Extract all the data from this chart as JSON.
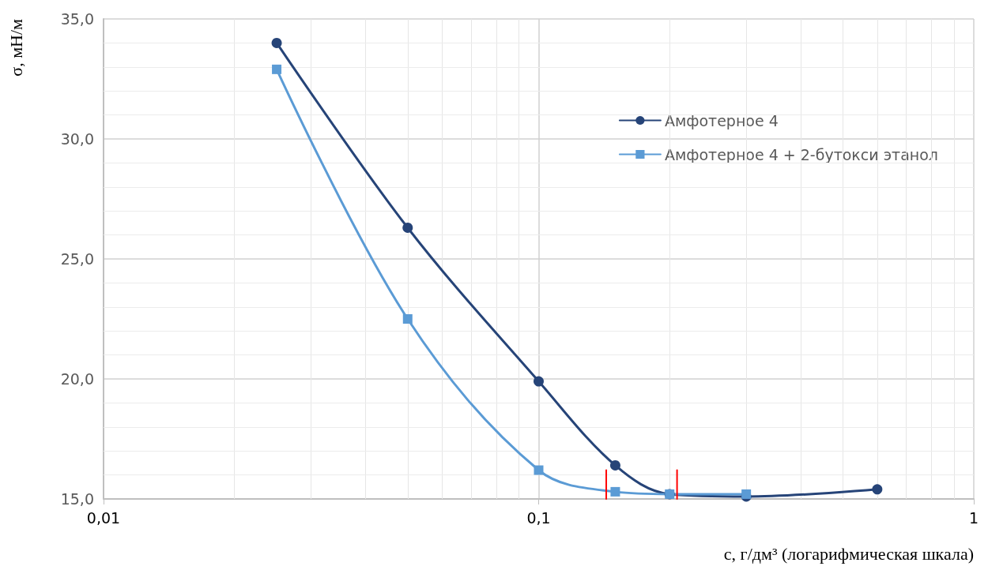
{
  "chart_data": {
    "type": "line",
    "xlabel": "c, г/дм³ (логарифмическая шкала)",
    "ylabel": "σ, мН/м",
    "log": "x",
    "xlim": [
      0.01,
      1
    ],
    "xticks": [
      {
        "value": 0.01,
        "label": "0,01"
      },
      {
        "value": 0.1,
        "label": "0,1"
      },
      {
        "value": 1,
        "label": "1"
      }
    ],
    "ylim": [
      15,
      35
    ],
    "yticks": [
      {
        "value": 15,
        "label": "15,0"
      },
      {
        "value": 20,
        "label": "20,0"
      },
      {
        "value": 25,
        "label": "25,0"
      },
      {
        "value": 30,
        "label": "30,0"
      },
      {
        "value": 35,
        "label": "35,0"
      }
    ],
    "grid": true,
    "legend": "top right",
    "series": [
      {
        "name": "Амфотерное 4",
        "color": "#264478",
        "marker": "circle",
        "x": [
          0.025,
          0.05,
          0.1,
          0.15,
          0.2,
          0.3,
          0.6
        ],
        "values": [
          34.0,
          26.3,
          19.9,
          16.4,
          15.2,
          15.1,
          15.4
        ]
      },
      {
        "name": "Амфотерное 4 + 2-бутокси этанол",
        "color": "#5b9bd5",
        "marker": "square",
        "x": [
          0.025,
          0.05,
          0.1,
          0.15,
          0.2,
          0.3
        ],
        "values": [
          32.9,
          22.5,
          16.2,
          15.3,
          15.2,
          15.2
        ]
      },
      {
        "color": "#ff0000",
        "marker": "none",
        "x": [
          0.143,
          0.143
        ],
        "values": [
          15.0,
          16.2
        ]
      },
      {
        "color": "#ff0000",
        "marker": "none",
        "x": [
          0.208,
          0.208
        ],
        "values": [
          15.0,
          16.2
        ]
      }
    ]
  }
}
